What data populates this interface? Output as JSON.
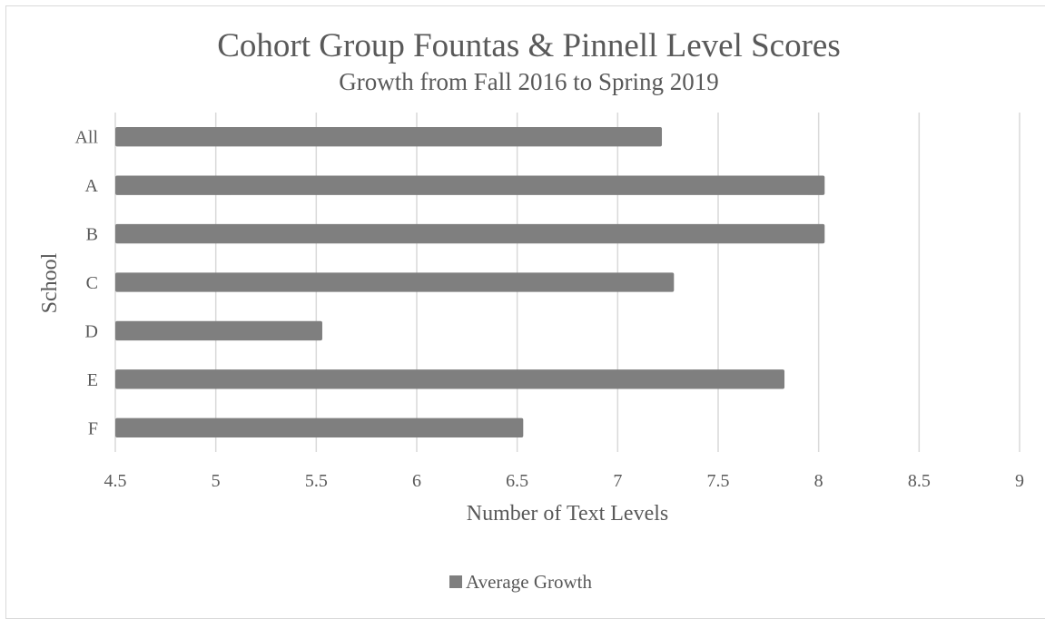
{
  "chart_data": {
    "type": "bar",
    "orientation": "horizontal",
    "title": "Cohort Group Fountas & Pinnell Level Scores",
    "subtitle": "Growth from Fall 2016 to Spring 2019",
    "xlabel": "Number of Text Levels",
    "ylabel": "School",
    "xlim": [
      4.5,
      9
    ],
    "xticks": [
      "4.5",
      "5",
      "5.5",
      "6",
      "6.5",
      "7",
      "7.5",
      "8",
      "8.5",
      "9"
    ],
    "categories": [
      "All",
      "A",
      "B",
      "C",
      "D",
      "E",
      "F"
    ],
    "series": [
      {
        "name": "Average Growth",
        "values": [
          7.22,
          8.03,
          8.03,
          7.28,
          5.53,
          7.83,
          6.53
        ]
      }
    ],
    "grid": "vertical",
    "legend_position": "bottom",
    "colors": {
      "bar": "#7f7f7f",
      "grid": "#d9d9d9",
      "text": "#595959"
    }
  }
}
